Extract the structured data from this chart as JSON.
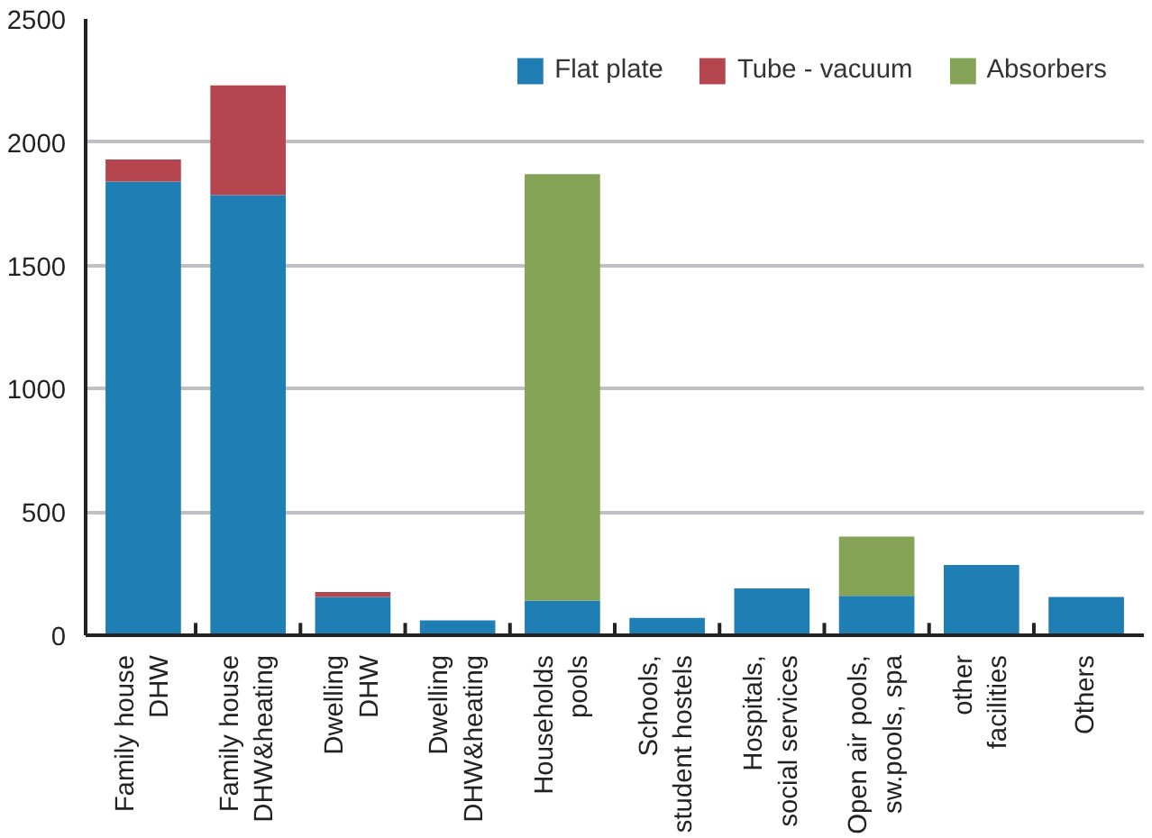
{
  "chart_data": {
    "type": "bar",
    "stacked": true,
    "categories": [
      "Family house\nDHW",
      "Family house\nDHW&heating",
      "Dwelling\nDHW",
      "Dwelling\nDHW&heating",
      "Households\npools",
      "Schools,\nstudent hostels",
      "Hospitals,\nsocial services",
      "Open air pools,\nsw.pools, spa",
      "other\nfacilities",
      "Others"
    ],
    "series": [
      {
        "name": "Flat plate",
        "color": "#1f7fb4",
        "values": [
          1840,
          1785,
          155,
          60,
          140,
          70,
          190,
          160,
          285,
          155
        ]
      },
      {
        "name": "Tube - vacuum",
        "color": "#b5454f",
        "values": [
          90,
          445,
          20,
          null,
          null,
          null,
          null,
          null,
          null,
          null
        ]
      },
      {
        "name": "Absorbers",
        "color": "#84a357",
        "values": [
          null,
          null,
          null,
          null,
          1730,
          null,
          null,
          240,
          null,
          null
        ]
      }
    ],
    "ylim": [
      0,
      2500
    ],
    "yticks": [
      0,
      500,
      1000,
      1500,
      2000,
      2500
    ],
    "grid": "y",
    "legend": "top right"
  }
}
